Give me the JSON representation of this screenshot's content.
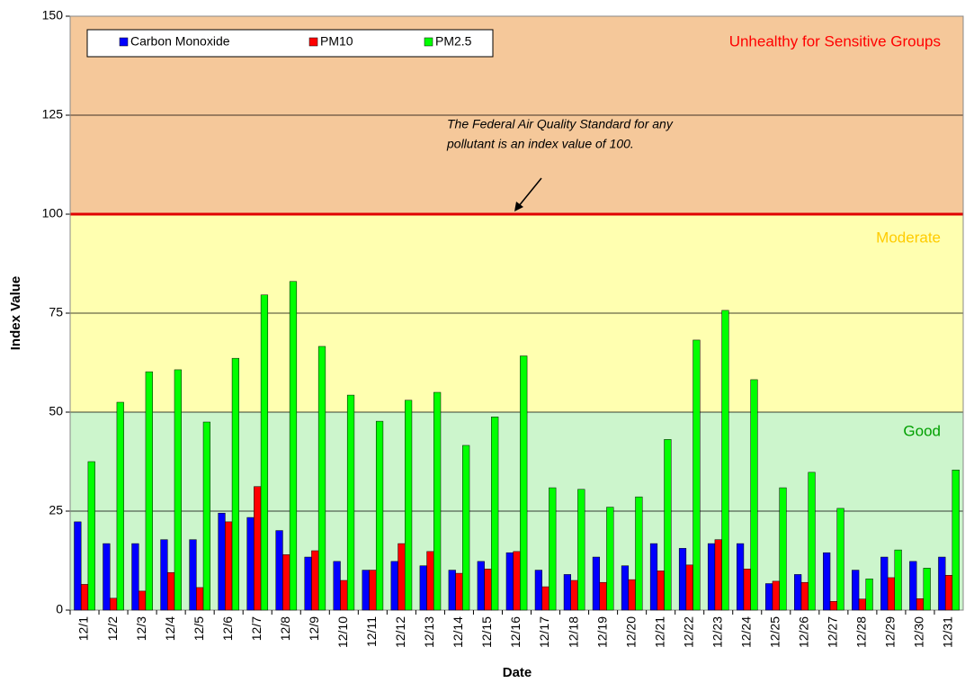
{
  "chart_data": {
    "type": "bar",
    "x_label": "Date",
    "y_label": "Index Value",
    "categories": [
      "12/1",
      "12/2",
      "12/3",
      "12/4",
      "12/5",
      "12/6",
      "12/7",
      "12/8",
      "12/9",
      "12/10",
      "12/11",
      "12/12",
      "12/13",
      "12/14",
      "12/15",
      "12/16",
      "12/17",
      "12/18",
      "12/19",
      "12/20",
      "12/21",
      "12/22",
      "12/23",
      "12/24",
      "12/25",
      "12/26",
      "12/27",
      "12/28",
      "12/29",
      "12/30",
      "12/31"
    ],
    "series": [
      {
        "name": "Carbon Monoxide",
        "color": "#0000ff",
        "values": [
          22.3,
          16.8,
          16.8,
          17.8,
          17.8,
          24.5,
          23.4,
          20.1,
          13.4,
          12.3,
          10.1,
          12.3,
          11.2,
          10.1,
          12.3,
          14.5,
          10.1,
          9,
          13.4,
          11.2,
          16.8,
          15.6,
          16.8,
          16.8,
          6.7,
          9,
          14.5,
          10.1,
          13.4,
          12.3,
          13.4
        ]
      },
      {
        "name": "PM10",
        "color": "#ff0000",
        "values": [
          6.5,
          3,
          4.8,
          9.5,
          5.7,
          22.3,
          31.2,
          14,
          15,
          7.5,
          10.1,
          16.8,
          14.8,
          9.3,
          10.4,
          14.8,
          5.9,
          7.5,
          7,
          7.7,
          9.9,
          11.4,
          17.8,
          10.4,
          7.3,
          7,
          2.2,
          2.8,
          8.2,
          2.9,
          8.8
        ]
      },
      {
        "name": "PM2.5",
        "color": "#00ff00",
        "values": [
          37.5,
          52.5,
          60.2,
          60.7,
          47.5,
          63.6,
          79.6,
          83,
          66.6,
          54.3,
          47.7,
          53,
          55,
          41.6,
          48.8,
          64.2,
          30.9,
          30.5,
          26,
          28.6,
          43.1,
          68.2,
          75.7,
          58.2,
          30.9,
          34.8,
          25.7,
          7.9,
          15.2,
          10.6,
          35.4
        ]
      }
    ],
    "ylim": [
      0,
      150
    ],
    "yticks": [
      0,
      25,
      50,
      75,
      100,
      125,
      150
    ],
    "grid": true,
    "bands": [
      {
        "label": "Good",
        "from": 0,
        "to": 50,
        "color": "#ccf5cc",
        "text_color": "#00a000"
      },
      {
        "label": "Moderate",
        "from": 50,
        "to": 100,
        "color": "#ffffb0",
        "text_color": "#ffcc00"
      },
      {
        "label": "Unhealthy for Sensitive Groups",
        "from": 100,
        "to": 150,
        "color": "#f5c89a",
        "text_color": "#ff0000"
      }
    ],
    "reference_line": {
      "value": 100,
      "color": "#e00000"
    },
    "annotation": [
      "The Federal Air Quality Standard for any",
      "pollutant is an index value of 100."
    ],
    "legend": "top-left"
  }
}
